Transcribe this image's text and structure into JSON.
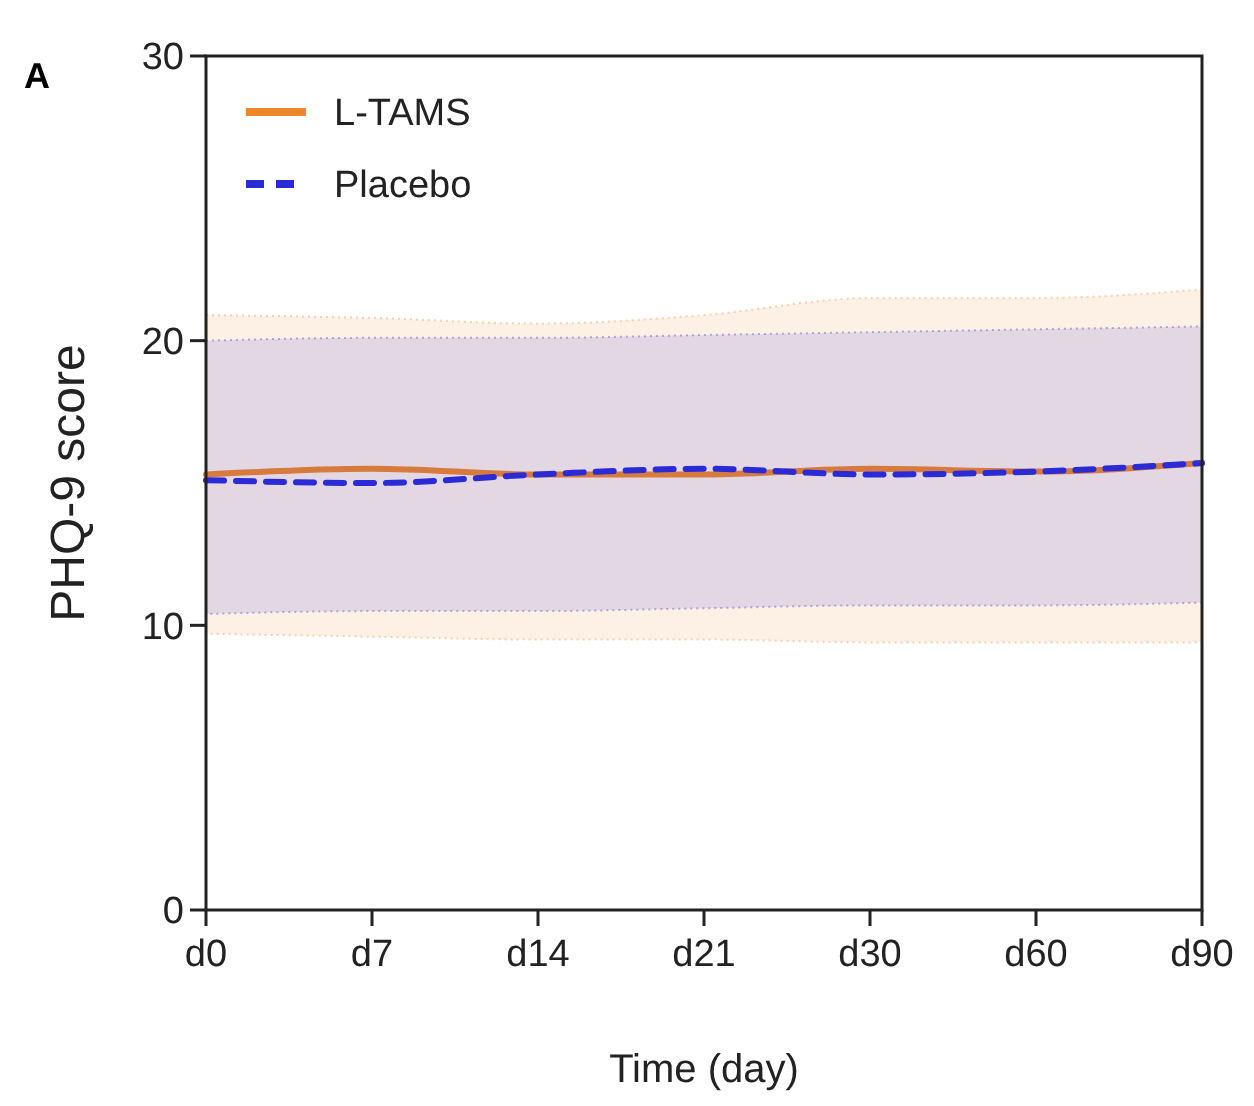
{
  "chart_data": {
    "type": "line",
    "xlabel": "Time (day)",
    "ylabel": "PHQ-9 score",
    "annotations": [
      "A"
    ],
    "categories": [
      "d0",
      "d7",
      "d14",
      "d21",
      "d30",
      "d60",
      "d90"
    ],
    "ylim": [
      0,
      30
    ],
    "yticks": [
      0,
      10,
      20,
      30
    ],
    "grid": false,
    "legend": "top left",
    "marker": "none",
    "series": [
      {
        "name": "L-TAMS",
        "color": "#f0862a",
        "line_style": "solid",
        "values": [
          15.3,
          15.5,
          15.3,
          15.3,
          15.5,
          15.4,
          15.7
        ],
        "lower": [
          9.7,
          9.6,
          9.5,
          9.5,
          9.4,
          9.4,
          9.4
        ],
        "upper": [
          20.9,
          20.8,
          20.6,
          20.9,
          21.5,
          21.5,
          21.8
        ]
      },
      {
        "name": "Placebo",
        "color": "#2a2ad6",
        "line_style": "dashed",
        "values": [
          15.1,
          15.0,
          15.3,
          15.5,
          15.3,
          15.4,
          15.7
        ],
        "lower": [
          10.4,
          10.5,
          10.5,
          10.6,
          10.7,
          10.7,
          10.8
        ],
        "upper": [
          20.0,
          20.1,
          20.1,
          20.2,
          20.3,
          20.4,
          20.5
        ]
      }
    ]
  }
}
